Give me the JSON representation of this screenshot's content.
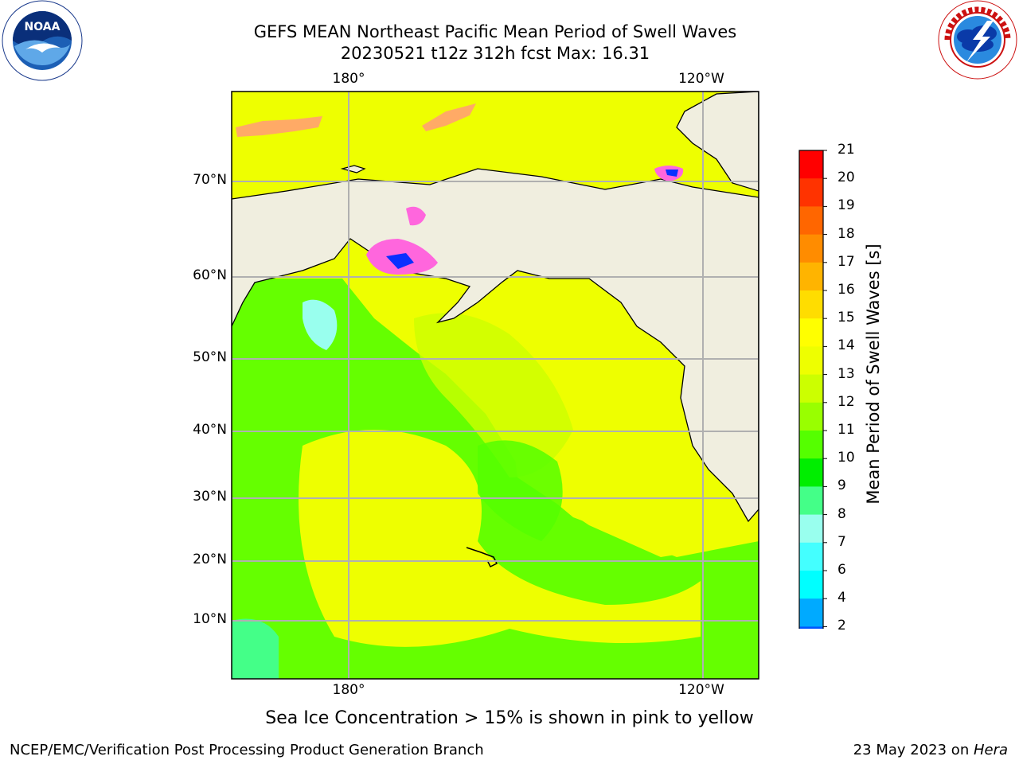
{
  "title": {
    "line1": "GEFS MEAN Northeast Pacific Mean Period of Swell Waves",
    "line2": "20230521 t12z 312h fcst   Max: 16.31"
  },
  "logos": {
    "left": "noaa-logo",
    "left_text": "NOAA",
    "right": "nws-logo"
  },
  "map": {
    "lon_labels_top": [
      "180°",
      "120°W"
    ],
    "lon_labels_bottom": [
      "180°",
      "120°W"
    ],
    "lat_labels": [
      "70°N",
      "60°N",
      "50°N",
      "40°N",
      "30°N",
      "20°N",
      "10°N"
    ],
    "colors": {
      "land": "#f0eedf",
      "coast": "#000000",
      "grid": "#b0b0b0"
    }
  },
  "colorbar": {
    "label": "Mean Period of Swell Waves [s]",
    "ticks": [
      "21",
      "20",
      "19",
      "18",
      "17",
      "16",
      "15",
      "14",
      "13",
      "12",
      "11",
      "10",
      "9",
      "8",
      "7",
      "6",
      "4",
      "2"
    ],
    "colors": [
      "#ff0000",
      "#ff3300",
      "#ff6600",
      "#ff8c00",
      "#ffb400",
      "#ffdd00",
      "#ffff00",
      "#eeff00",
      "#ccff00",
      "#99ff00",
      "#55ff00",
      "#00ee00",
      "#44ff88",
      "#99ffee",
      "#44ffff",
      "#00ffff",
      "#00aaff",
      "#0055ff"
    ],
    "extend_color": "#0000ee"
  },
  "footnote": "Sea Ice Concentration > 15% is shown in pink to yellow",
  "footer": {
    "left": "NCEP/EMC/Verification Post Processing Product Generation Branch",
    "right_date": "23 May 2023 on ",
    "right_host": "Hera"
  }
}
